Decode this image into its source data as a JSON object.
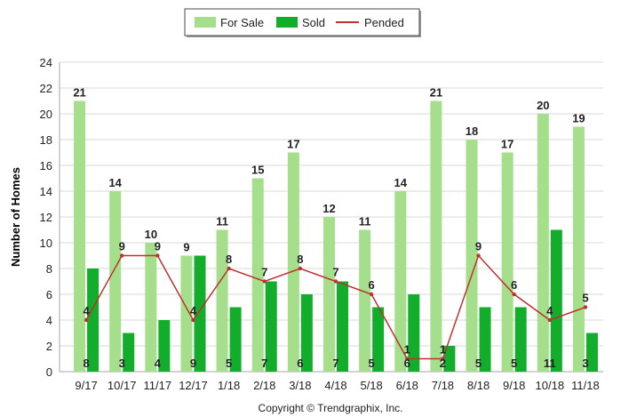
{
  "chart_data": {
    "type": "bar",
    "ylabel": "Number of Homes",
    "ylim": [
      0,
      24
    ],
    "yticks": [
      0,
      2,
      4,
      6,
      8,
      10,
      12,
      14,
      16,
      18,
      20,
      22,
      24
    ],
    "grid": true,
    "legend_position": "top-center",
    "categories": [
      "9/17",
      "10/17",
      "11/17",
      "12/17",
      "1/18",
      "2/18",
      "3/18",
      "4/18",
      "5/18",
      "6/18",
      "7/18",
      "8/18",
      "9/18",
      "10/18",
      "11/18"
    ],
    "series": [
      {
        "name": "For Sale",
        "kind": "bar",
        "color": "#a5df8c",
        "values": [
          21,
          14,
          10,
          9,
          11,
          15,
          17,
          12,
          11,
          14,
          21,
          18,
          17,
          20,
          19
        ]
      },
      {
        "name": "Sold",
        "kind": "bar",
        "color": "#12ad2b",
        "values": [
          8,
          3,
          4,
          9,
          5,
          7,
          6,
          7,
          5,
          6,
          2,
          5,
          5,
          11,
          3
        ]
      },
      {
        "name": "Pended",
        "kind": "line",
        "color": "#c0302e",
        "values": [
          4,
          9,
          9,
          4,
          8,
          7,
          8,
          7,
          6,
          1,
          1,
          9,
          6,
          4,
          5
        ]
      }
    ],
    "footer": "Copyright © Trendgraphix, Inc."
  }
}
